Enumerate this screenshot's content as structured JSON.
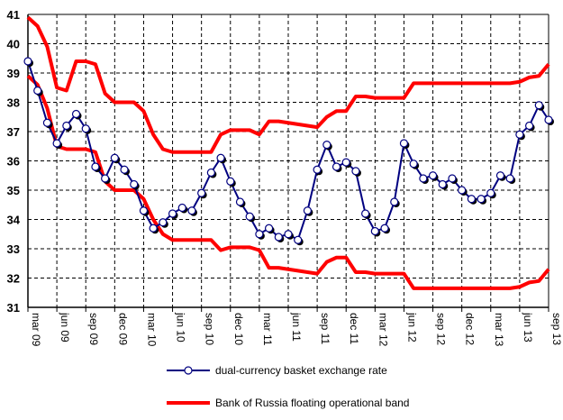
{
  "chart_data": {
    "type": "line",
    "title": "",
    "xlabel": "",
    "ylabel": "",
    "ylim": [
      31,
      41
    ],
    "yticks": [
      "31",
      "32",
      "33",
      "34",
      "35",
      "36",
      "37",
      "38",
      "39",
      "40",
      "41"
    ],
    "xtick_labels": [
      "mar 09",
      "jun 09",
      "sep 09",
      "dec 09",
      "mar 10",
      "jun 10",
      "sep 10",
      "dec 10",
      "mar 11",
      "jun 11",
      "sep 11",
      "dec 11",
      "mar 12",
      "jun 12",
      "sep 12",
      "dec 12",
      "mar 13",
      "jun 13",
      "sep 13"
    ],
    "grid": true,
    "legend_position": "bottom",
    "x_frequency": "monthly, mar 2009 to sep 2013",
    "series": [
      {
        "name": "dual-currency basket exchange rate",
        "color": "#000080",
        "values": [
          39.4,
          38.4,
          37.3,
          36.6,
          37.2,
          37.6,
          37.1,
          35.8,
          35.4,
          36.1,
          35.7,
          35.2,
          34.3,
          33.7,
          33.9,
          34.2,
          34.4,
          34.3,
          34.9,
          35.6,
          36.1,
          35.3,
          34.6,
          34.1,
          33.5,
          33.7,
          33.4,
          33.5,
          33.3,
          34.3,
          35.7,
          36.55,
          35.8,
          35.95,
          35.65,
          34.2,
          33.6,
          33.7,
          34.6,
          36.6,
          35.9,
          35.4,
          35.5,
          35.2,
          35.4,
          35.0,
          34.7,
          34.7,
          34.9,
          35.5,
          35.4,
          36.9,
          37.2,
          37.9,
          37.4
        ]
      },
      {
        "name": "Bank of Russia floating operational band",
        "color": "#ff0000",
        "upper": [
          40.9,
          40.6,
          39.9,
          38.5,
          38.4,
          39.4,
          39.4,
          39.3,
          38.3,
          38.0,
          38.0,
          38.0,
          37.7,
          36.9,
          36.4,
          36.3,
          36.3,
          36.3,
          36.3,
          36.3,
          36.9,
          37.05,
          37.05,
          37.05,
          36.9,
          37.35,
          37.35,
          37.3,
          37.25,
          37.2,
          37.15,
          37.5,
          37.7,
          37.7,
          38.2,
          38.2,
          38.15,
          38.15,
          38.15,
          38.15,
          38.65,
          38.65,
          38.65,
          38.65,
          38.65,
          38.65,
          38.65,
          38.65,
          38.65,
          38.65,
          38.65,
          38.7,
          38.85,
          38.9,
          39.3
        ],
        "lower": [
          38.9,
          38.6,
          37.8,
          36.5,
          36.4,
          36.4,
          36.4,
          36.3,
          35.3,
          35.0,
          35.0,
          35.0,
          34.7,
          34.0,
          33.5,
          33.3,
          33.3,
          33.3,
          33.3,
          33.3,
          32.95,
          33.05,
          33.05,
          33.05,
          32.95,
          32.35,
          32.35,
          32.3,
          32.25,
          32.2,
          32.15,
          32.55,
          32.7,
          32.7,
          32.2,
          32.2,
          32.15,
          32.15,
          32.15,
          32.15,
          31.65,
          31.65,
          31.65,
          31.65,
          31.65,
          31.65,
          31.65,
          31.65,
          31.65,
          31.65,
          31.65,
          31.7,
          31.85,
          31.9,
          32.3
        ]
      }
    ]
  },
  "legend": {
    "basket_label": "dual-currency basket exchange rate",
    "band_label": "Bank of Russia floating operational band"
  }
}
